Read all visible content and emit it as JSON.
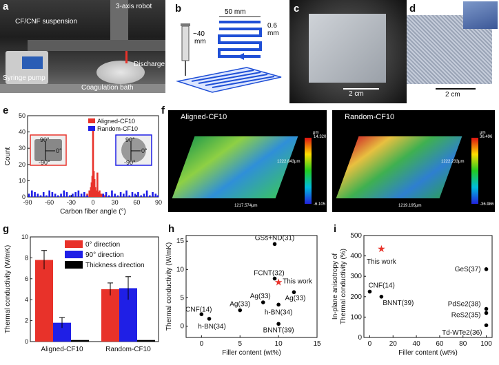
{
  "panel_a": {
    "letter": "a",
    "labels": {
      "robot": "3-axis robot",
      "suspension": "CF/CNF suspension",
      "discharge": "Discharge",
      "pump": "Syringe pump",
      "bath": "Coagulation bath"
    }
  },
  "panel_b": {
    "letter": "b",
    "width_label": "50 mm",
    "height_label": "~40\nmm",
    "height_line1": "~40",
    "height_line2": "mm",
    "spacing_line1": "0.6",
    "spacing_line2": "mm"
  },
  "panel_c": {
    "letter": "c",
    "scale": "2 cm"
  },
  "panel_d": {
    "letter": "d",
    "scale": "2 cm"
  },
  "panel_e": {
    "letter": "e"
  },
  "panel_f": {
    "letter": "f",
    "left": {
      "title": "Aligned-CF10",
      "dim1": "1222.843μm",
      "dim2": "1217.574μm",
      "cb_top": "14.320",
      "cb_bot": "-6.105",
      "unit": "μm"
    },
    "right": {
      "title": "Random-CF10",
      "dim1": "1222.233μm",
      "dim2": "1219.195μm",
      "cb_top": "36.496",
      "cb_bot": "-36.986",
      "unit": "μm"
    }
  },
  "panel_g": {
    "letter": "g"
  },
  "panel_h": {
    "letter": "h"
  },
  "panel_i": {
    "letter": "i"
  },
  "colors": {
    "red": "#e8322a",
    "blue": "#1f1fe6",
    "black": "#000000"
  },
  "chart_data": [
    {
      "id": "e",
      "type": "bar",
      "xlabel": "Carbon fiber angle (°)",
      "ylabel": "Count",
      "xlim": [
        -90,
        90
      ],
      "ylim": [
        0,
        50
      ],
      "xticks": [
        "-90",
        "-60",
        "-30",
        "0",
        "30",
        "60",
        "90"
      ],
      "yticks": [
        "0",
        "10",
        "20",
        "30",
        "40",
        "50"
      ],
      "legend": [
        "Aligned-CF10",
        "Random-CF10"
      ],
      "inset_labels": [
        "90°",
        "0°",
        "-90°"
      ],
      "series": [
        {
          "name": "Aligned-CF10",
          "x": [
            -8,
            -5,
            -4,
            -3,
            -2,
            -1,
            0,
            1,
            2,
            3,
            4,
            5,
            6,
            7,
            8,
            9,
            10,
            12,
            14,
            16,
            -12
          ],
          "values": [
            2,
            4,
            3,
            6,
            9,
            13,
            43,
            16,
            11,
            6,
            4,
            3,
            15,
            2,
            3,
            4,
            2,
            2,
            1,
            1,
            1
          ]
        },
        {
          "name": "Random-CF10",
          "x": [
            -88,
            -84,
            -80,
            -76,
            -72,
            -68,
            -64,
            -60,
            -56,
            -52,
            -48,
            -44,
            -40,
            -36,
            -32,
            -28,
            -24,
            -20,
            -16,
            -12,
            -8,
            14,
            18,
            22,
            26,
            30,
            34,
            38,
            42,
            46,
            50,
            54,
            58,
            62,
            66,
            70,
            74,
            78,
            82,
            86,
            89
          ],
          "values": [
            2,
            4,
            3,
            2,
            1,
            3,
            1,
            4,
            3,
            2,
            1,
            2,
            4,
            3,
            1,
            2,
            3,
            4,
            2,
            3,
            1,
            2,
            3,
            1,
            4,
            2,
            1,
            3,
            2,
            4,
            1,
            3,
            2,
            3,
            1,
            2,
            4,
            1,
            3,
            2,
            1
          ]
        }
      ]
    },
    {
      "id": "g",
      "type": "bar",
      "ylabel": "Thermal conductivity (W/mK)",
      "ylim": [
        0,
        10
      ],
      "yticks": [
        "0",
        "2",
        "4",
        "6",
        "8",
        "10"
      ],
      "categories": [
        "Aligned-CF10",
        "Random-CF10"
      ],
      "series": [
        {
          "name": "0° direction",
          "values": [
            7.8,
            5.0
          ],
          "err": [
            0.9,
            0.6
          ]
        },
        {
          "name": "90° direction",
          "values": [
            1.8,
            5.1
          ],
          "err": [
            0.5,
            1.1
          ]
        },
        {
          "name": "Thickness direction",
          "values": [
            0.15,
            0.15
          ],
          "err": [
            0,
            0
          ]
        }
      ]
    },
    {
      "id": "h",
      "type": "scatter",
      "xlabel": "Filler content (wt%)",
      "ylabel": "Thermal conductivity (W/mK)",
      "xlim": [
        -2,
        15
      ],
      "ylim": [
        -2,
        16
      ],
      "xticks": [
        "0",
        "5",
        "10",
        "15"
      ],
      "yticks": [
        "0",
        "5",
        "10",
        "15"
      ],
      "points": [
        {
          "x": 0,
          "y": 2.1,
          "label": "CNF(14)"
        },
        {
          "x": 1,
          "y": 1.3,
          "label": "h-BN(34)"
        },
        {
          "x": 5,
          "y": 2.8,
          "label": "Ag(33)"
        },
        {
          "x": 8,
          "y": 4.2,
          "label": "Ag(33)"
        },
        {
          "x": 9.5,
          "y": 14.5,
          "label": "GSs+ND(31)"
        },
        {
          "x": 9.5,
          "y": 8.4,
          "label": "FCNT(32)"
        },
        {
          "x": 10,
          "y": 7.8,
          "label": "This work",
          "star": true
        },
        {
          "x": 10,
          "y": 3.8,
          "label": "h-BN(34)"
        },
        {
          "x": 10,
          "y": 0.4,
          "label": "BNNT(39)"
        },
        {
          "x": 12,
          "y": 6.0,
          "label": "Ag(33)"
        }
      ]
    },
    {
      "id": "i",
      "type": "scatter",
      "xlabel": "Filler content (wt%)",
      "ylabel": "In-plane anisotropy of Thermal conductivity (%)",
      "xlim": [
        -5,
        105
      ],
      "ylim": [
        0,
        500
      ],
      "xticks": [
        "0",
        "20",
        "40",
        "60",
        "80",
        "100"
      ],
      "yticks": [
        "0",
        "100",
        "200",
        "300",
        "400",
        "500"
      ],
      "points": [
        {
          "x": 0,
          "y": 225,
          "label": "CNF(14)"
        },
        {
          "x": 10,
          "y": 200,
          "label": "BNNT(39)"
        },
        {
          "x": 10,
          "y": 435,
          "label": "This work",
          "star": true
        },
        {
          "x": 100,
          "y": 335,
          "label": "GeS(37)"
        },
        {
          "x": 100,
          "y": 140,
          "label": "PdSe2(38)"
        },
        {
          "x": 100,
          "y": 120,
          "label": "ReS2(35)"
        },
        {
          "x": 100,
          "y": 60,
          "label": "Td-WTe2(36)"
        }
      ]
    }
  ]
}
